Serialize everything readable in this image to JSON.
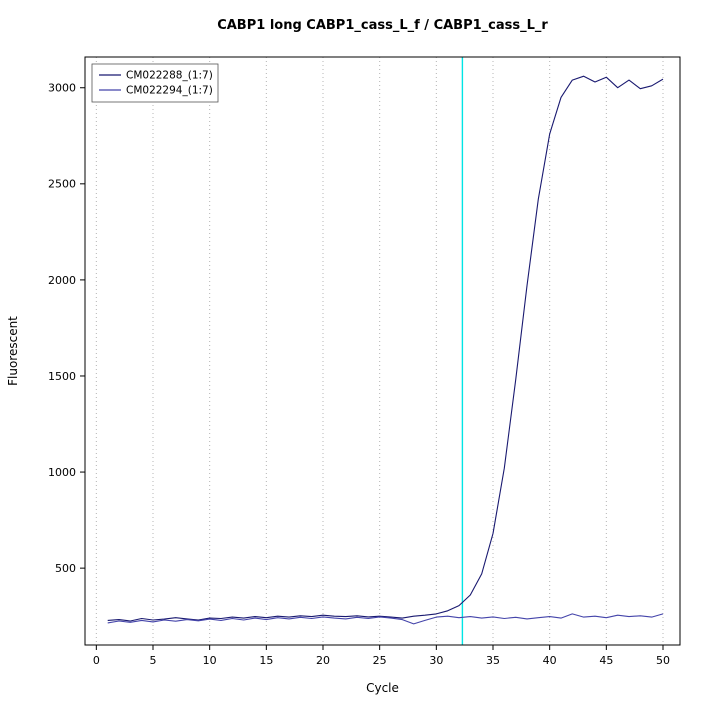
{
  "title": "CABP1 long CABP1_cass_L_f / CABP1_cass_L_r",
  "chart_data": {
    "type": "line",
    "title": "CABP1 long CABP1_cass_L_f / CABP1_cass_L_r",
    "xlabel": "Cycle",
    "ylabel": "Fluorescent",
    "xlim": [
      -1,
      51.5
    ],
    "ylim": [
      100,
      3160
    ],
    "x_ticks": [
      0,
      5,
      10,
      15,
      20,
      25,
      30,
      35,
      40,
      45,
      50
    ],
    "y_ticks": [
      500,
      1000,
      1500,
      2000,
      2500,
      3000
    ],
    "grid": "vertical-dotted",
    "grid_color": "#b4b4b4",
    "threshold_line_x": 32.3,
    "threshold_color": "#00e5e5",
    "legend_position": "top-left",
    "x": [
      1,
      2,
      3,
      4,
      5,
      6,
      7,
      8,
      9,
      10,
      11,
      12,
      13,
      14,
      15,
      16,
      17,
      18,
      19,
      20,
      21,
      22,
      23,
      24,
      25,
      26,
      27,
      28,
      29,
      30,
      31,
      32,
      33,
      34,
      35,
      36,
      37,
      38,
      39,
      40,
      41,
      42,
      43,
      44,
      45,
      46,
      47,
      48,
      49,
      50
    ],
    "series": [
      {
        "name": "CM022288_(1:7)",
        "color": "#191970",
        "values": [
          228,
          232,
          225,
          238,
          230,
          235,
          242,
          236,
          230,
          240,
          238,
          245,
          240,
          248,
          242,
          250,
          245,
          252,
          248,
          255,
          250,
          248,
          252,
          246,
          250,
          245,
          240,
          250,
          255,
          262,
          278,
          305,
          360,
          470,
          680,
          1020,
          1480,
          1970,
          2420,
          2760,
          2950,
          3040,
          3060,
          3030,
          3055,
          3000,
          3040,
          2995,
          3010,
          3045
        ]
      },
      {
        "name": "CM022294_(1:7)",
        "color": "#4444aa",
        "values": [
          215,
          225,
          218,
          228,
          220,
          230,
          224,
          232,
          226,
          235,
          228,
          238,
          230,
          240,
          232,
          242,
          236,
          244,
          238,
          246,
          240,
          236,
          244,
          238,
          246,
          240,
          232,
          210,
          228,
          245,
          250,
          242,
          248,
          240,
          246,
          238,
          244,
          236,
          242,
          248,
          240,
          262,
          245,
          250,
          242,
          255,
          248,
          252,
          245,
          262
        ]
      }
    ]
  }
}
